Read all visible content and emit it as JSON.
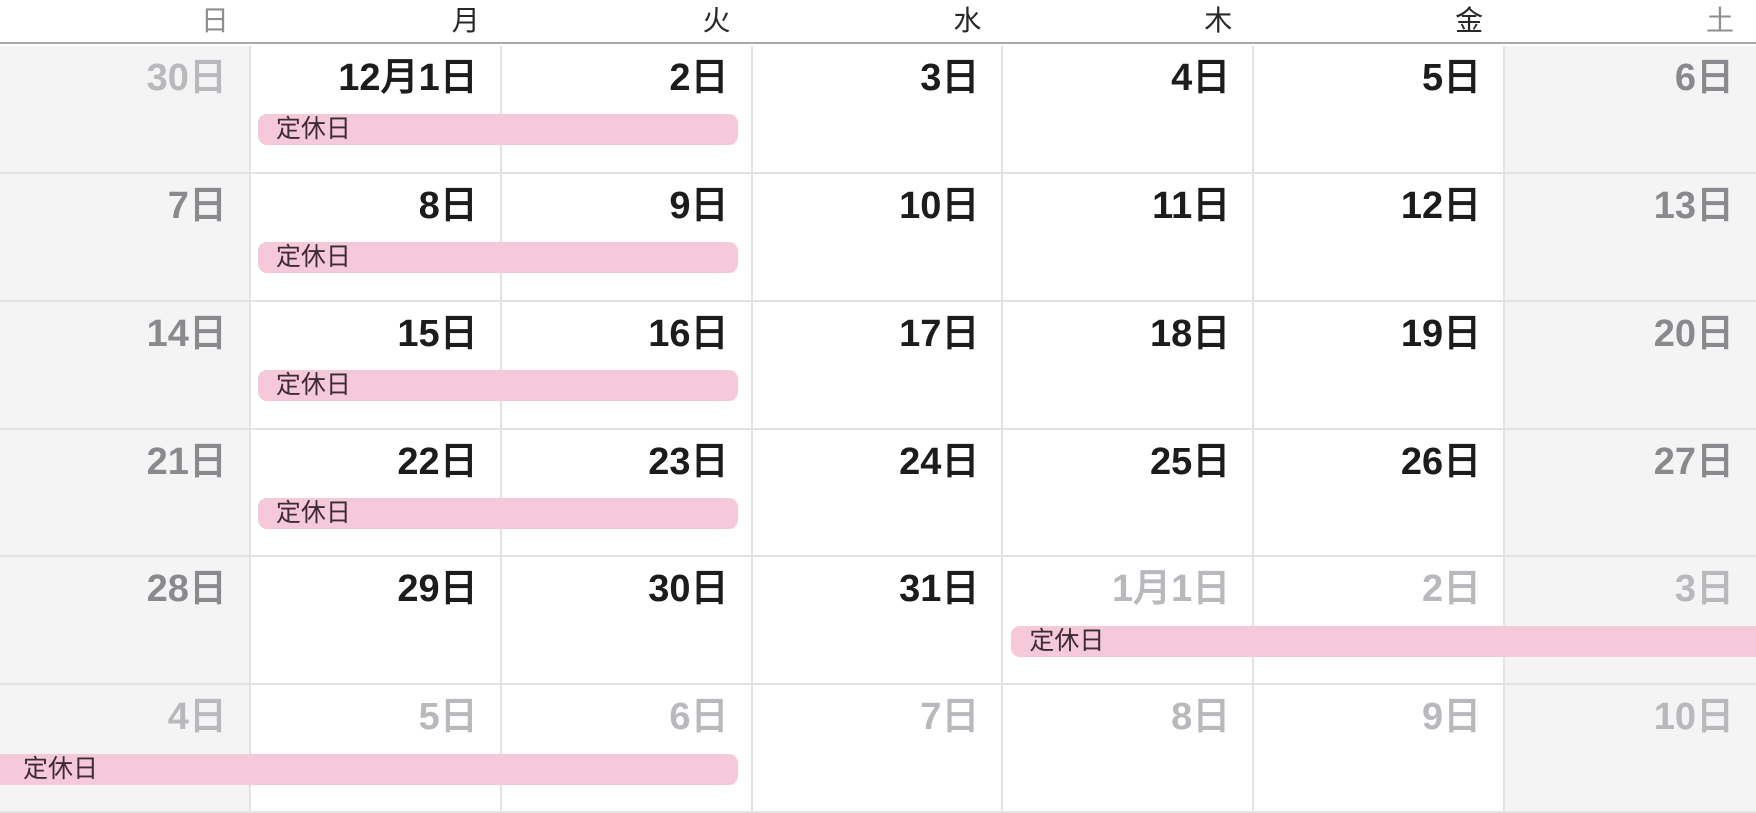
{
  "calendar": {
    "weekday_headers": [
      {
        "label": "日",
        "weekend": true
      },
      {
        "label": "月",
        "weekend": false
      },
      {
        "label": "火",
        "weekend": false
      },
      {
        "label": "水",
        "weekend": false
      },
      {
        "label": "木",
        "weekend": false
      },
      {
        "label": "金",
        "weekend": false
      },
      {
        "label": "土",
        "weekend": true
      }
    ],
    "weeks": [
      {
        "days": [
          {
            "label": "30日",
            "tone": "dim"
          },
          {
            "label": "12月1日",
            "tone": "normal"
          },
          {
            "label": "2日",
            "tone": "normal"
          },
          {
            "label": "3日",
            "tone": "normal"
          },
          {
            "label": "4日",
            "tone": "normal"
          },
          {
            "label": "5日",
            "tone": "normal"
          },
          {
            "label": "6日",
            "tone": "muted"
          }
        ]
      },
      {
        "days": [
          {
            "label": "7日",
            "tone": "muted"
          },
          {
            "label": "8日",
            "tone": "normal"
          },
          {
            "label": "9日",
            "tone": "normal"
          },
          {
            "label": "10日",
            "tone": "normal"
          },
          {
            "label": "11日",
            "tone": "normal"
          },
          {
            "label": "12日",
            "tone": "normal"
          },
          {
            "label": "13日",
            "tone": "muted"
          }
        ]
      },
      {
        "days": [
          {
            "label": "14日",
            "tone": "muted"
          },
          {
            "label": "15日",
            "tone": "normal"
          },
          {
            "label": "16日",
            "tone": "normal"
          },
          {
            "label": "17日",
            "tone": "normal"
          },
          {
            "label": "18日",
            "tone": "normal"
          },
          {
            "label": "19日",
            "tone": "normal"
          },
          {
            "label": "20日",
            "tone": "muted"
          }
        ]
      },
      {
        "days": [
          {
            "label": "21日",
            "tone": "muted"
          },
          {
            "label": "22日",
            "tone": "normal"
          },
          {
            "label": "23日",
            "tone": "normal"
          },
          {
            "label": "24日",
            "tone": "normal"
          },
          {
            "label": "25日",
            "tone": "normal"
          },
          {
            "label": "26日",
            "tone": "normal"
          },
          {
            "label": "27日",
            "tone": "muted"
          }
        ]
      },
      {
        "days": [
          {
            "label": "28日",
            "tone": "muted"
          },
          {
            "label": "29日",
            "tone": "normal"
          },
          {
            "label": "30日",
            "tone": "normal"
          },
          {
            "label": "31日",
            "tone": "normal"
          },
          {
            "label": "1月1日",
            "tone": "dim"
          },
          {
            "label": "2日",
            "tone": "dim"
          },
          {
            "label": "3日",
            "tone": "dim"
          }
        ]
      },
      {
        "days": [
          {
            "label": "4日",
            "tone": "dim"
          },
          {
            "label": "5日",
            "tone": "dim"
          },
          {
            "label": "6日",
            "tone": "dim"
          },
          {
            "label": "7日",
            "tone": "dim"
          },
          {
            "label": "8日",
            "tone": "dim"
          },
          {
            "label": "9日",
            "tone": "dim"
          },
          {
            "label": "10日",
            "tone": "dim"
          }
        ]
      }
    ]
  },
  "events": [
    {
      "label": "定休日",
      "week": 1,
      "span": "月〜火"
    },
    {
      "label": "定休日",
      "week": 2,
      "span": "月〜火"
    },
    {
      "label": "定休日",
      "week": 3,
      "span": "月〜火"
    },
    {
      "label": "定休日",
      "week": 4,
      "span": "月〜火"
    },
    {
      "label": "定休日",
      "week": 5,
      "span": "木〜（右端で切断）"
    },
    {
      "label": "定休日",
      "week": 6,
      "span": "（左端から継続）〜火"
    }
  ],
  "colors": {
    "event_bg": "#f6c9da",
    "event_text": "#3e2b34",
    "weekend_bg": "#f4f4f5",
    "grid_line": "#e3e3e6",
    "header_rule": "#a8a8ab",
    "date_normal": "#1c1c1e",
    "date_weekend": "#8a8a8e",
    "date_outside_month": "#b9b9bd"
  }
}
